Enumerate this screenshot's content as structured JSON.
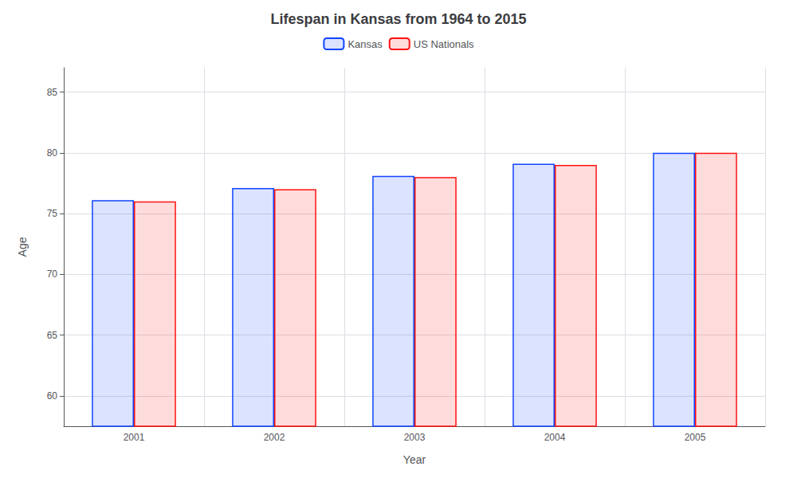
{
  "chart_data": {
    "type": "bar",
    "title": "Lifespan in Kansas from 1964 to 2015",
    "x_label": "Year",
    "y_label": "Age",
    "categories": [
      "2001",
      "2002",
      "2003",
      "2004",
      "2005"
    ],
    "series": [
      {
        "name": "Kansas",
        "color": "#1144ff",
        "values": [
          76.1,
          77.1,
          78.1,
          79.1,
          80.0
        ]
      },
      {
        "name": "US Nationals",
        "color": "#ff1111",
        "values": [
          76.0,
          77.0,
          78.0,
          79.0,
          80.0
        ]
      }
    ],
    "ylim": [
      57.5,
      87
    ],
    "yticks": [
      60,
      65,
      70,
      75,
      80,
      85
    ],
    "grid": true,
    "legend": "top"
  }
}
